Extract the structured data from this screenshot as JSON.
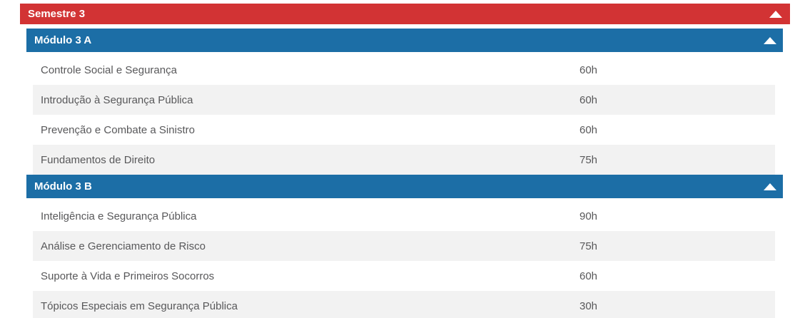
{
  "colors": {
    "semester_header_bg": "#d23334",
    "module_header_bg": "#1c6ea6",
    "row_alt_bg": "#f2f2f2",
    "row_text": "#58585a",
    "header_text": "#ffffff"
  },
  "semester": {
    "title": "Semestre 3",
    "collapse_icon": "triangle-up"
  },
  "modules": [
    {
      "title": "Módulo 3 A",
      "collapse_icon": "triangle-up",
      "courses": [
        {
          "name": "Controle Social e Segurança",
          "hours": "60h"
        },
        {
          "name": "Introdução à Segurança Pública",
          "hours": "60h"
        },
        {
          "name": "Prevenção e Combate a Sinistro",
          "hours": "60h"
        },
        {
          "name": "Fundamentos de Direito",
          "hours": "75h"
        }
      ]
    },
    {
      "title": "Módulo 3 B",
      "collapse_icon": "triangle-up",
      "courses": [
        {
          "name": "Inteligência e Segurança Pública",
          "hours": "90h"
        },
        {
          "name": "Análise e Gerenciamento de Risco",
          "hours": "75h"
        },
        {
          "name": "Suporte à Vida e Primeiros Socorros",
          "hours": "60h"
        },
        {
          "name": "Tópicos Especiais em Segurança Pública",
          "hours": "30h"
        }
      ]
    }
  ]
}
